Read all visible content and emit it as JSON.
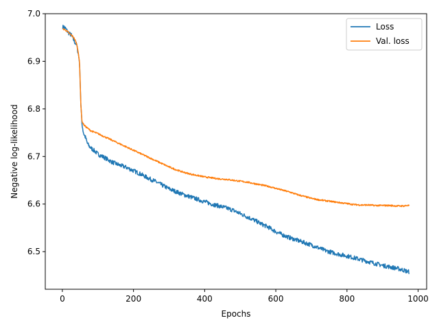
{
  "chart_data": {
    "type": "line",
    "xlabel": "Epochs",
    "ylabel": "Negative log-likelihood",
    "xlim": [
      -48,
      1024
    ],
    "ylim": [
      6.421,
      7.0
    ],
    "xticks": [
      0,
      200,
      400,
      600,
      800,
      1000
    ],
    "yticks": [
      6.5,
      6.6,
      6.7,
      6.8,
      6.9,
      7.0
    ],
    "xtick_labels": [
      "0",
      "200",
      "400",
      "600",
      "800",
      "1000"
    ],
    "ytick_labels": [
      "6.5",
      "6.6",
      "6.7",
      "6.8",
      "6.9",
      "7.0"
    ],
    "grid": false,
    "legend": "top-right",
    "series": [
      {
        "name": "Loss",
        "color": "#1f77b4",
        "x": [
          1,
          5,
          10,
          15,
          20,
          25,
          30,
          35,
          40,
          45,
          48,
          50,
          52,
          55,
          58,
          60,
          65,
          70,
          75,
          80,
          90,
          100,
          120,
          140,
          160,
          180,
          200,
          220,
          240,
          260,
          280,
          300,
          320,
          340,
          360,
          380,
          400,
          420,
          440,
          460,
          480,
          500,
          520,
          540,
          560,
          580,
          600,
          620,
          640,
          660,
          680,
          700,
          720,
          740,
          760,
          780,
          800,
          820,
          840,
          860,
          880,
          900,
          920,
          940,
          960,
          970,
          975
        ],
        "y": [
          6.972,
          6.972,
          6.968,
          6.962,
          6.958,
          6.955,
          6.948,
          6.94,
          6.935,
          6.915,
          6.9,
          6.86,
          6.81,
          6.77,
          6.755,
          6.748,
          6.74,
          6.728,
          6.722,
          6.718,
          6.712,
          6.705,
          6.697,
          6.688,
          6.682,
          6.677,
          6.67,
          6.663,
          6.655,
          6.648,
          6.64,
          6.632,
          6.626,
          6.62,
          6.615,
          6.61,
          6.605,
          6.6,
          6.596,
          6.592,
          6.587,
          6.58,
          6.573,
          6.566,
          6.558,
          6.551,
          6.542,
          6.535,
          6.529,
          6.524,
          6.519,
          6.514,
          6.508,
          6.502,
          6.498,
          6.494,
          6.491,
          6.487,
          6.483,
          6.479,
          6.475,
          6.471,
          6.468,
          6.465,
          6.461,
          6.458,
          6.458
        ]
      },
      {
        "name": "Val. loss",
        "color": "#ff7f0e",
        "x": [
          1,
          5,
          10,
          15,
          20,
          25,
          30,
          35,
          40,
          45,
          48,
          50,
          52,
          55,
          58,
          60,
          65,
          70,
          75,
          80,
          90,
          100,
          120,
          140,
          160,
          180,
          200,
          220,
          240,
          260,
          280,
          300,
          320,
          340,
          360,
          380,
          400,
          420,
          440,
          460,
          480,
          500,
          520,
          540,
          560,
          580,
          600,
          620,
          640,
          660,
          680,
          700,
          720,
          740,
          760,
          780,
          800,
          820,
          840,
          860,
          880,
          900,
          920,
          940,
          960,
          970,
          975
        ],
        "y": [
          6.968,
          6.967,
          6.965,
          6.962,
          6.958,
          6.955,
          6.952,
          6.946,
          6.937,
          6.918,
          6.9,
          6.86,
          6.81,
          6.775,
          6.77,
          6.767,
          6.763,
          6.76,
          6.757,
          6.754,
          6.751,
          6.748,
          6.741,
          6.734,
          6.727,
          6.72,
          6.713,
          6.706,
          6.699,
          6.692,
          6.685,
          6.678,
          6.672,
          6.667,
          6.663,
          6.66,
          6.657,
          6.655,
          6.653,
          6.652,
          6.65,
          6.648,
          6.646,
          6.643,
          6.64,
          6.637,
          6.633,
          6.629,
          6.625,
          6.62,
          6.616,
          6.612,
          6.609,
          6.607,
          6.605,
          6.603,
          6.601,
          6.599,
          6.598,
          6.598,
          6.597,
          6.597,
          6.597,
          6.596,
          6.596,
          6.597,
          6.597
        ]
      }
    ]
  }
}
